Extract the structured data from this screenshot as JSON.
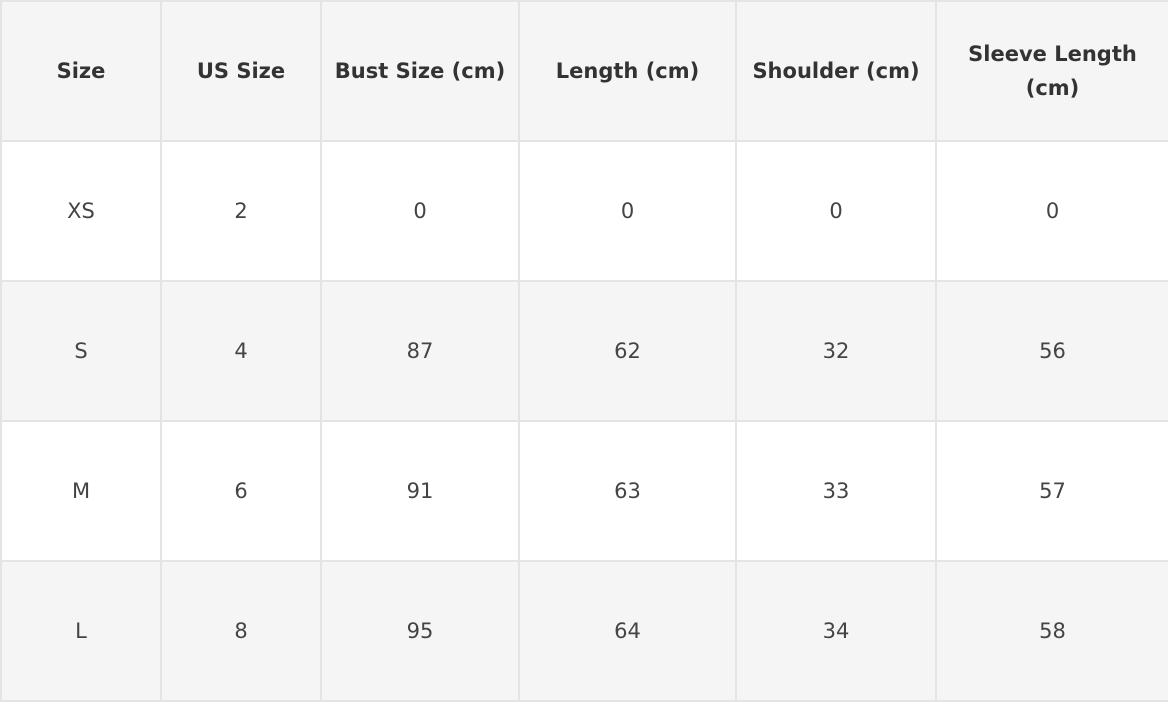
{
  "table": {
    "headers": [
      "Size",
      "US Size",
      "Bust Size (cm)",
      "Length (cm)",
      "Shoulder (cm)",
      "Sleeve Length (cm)"
    ],
    "rows": [
      [
        "XS",
        "2",
        "0",
        "0",
        "0",
        "0"
      ],
      [
        "S",
        "4",
        "87",
        "62",
        "32",
        "56"
      ],
      [
        "M",
        "6",
        "91",
        "63",
        "33",
        "57"
      ],
      [
        "L",
        "8",
        "95",
        "64",
        "34",
        "58"
      ]
    ]
  },
  "colors": {
    "header_bg": "#f5f5f5",
    "alt_row_bg": "#f5f5f5",
    "border": "#e4e4e4",
    "text": "#333333"
  }
}
